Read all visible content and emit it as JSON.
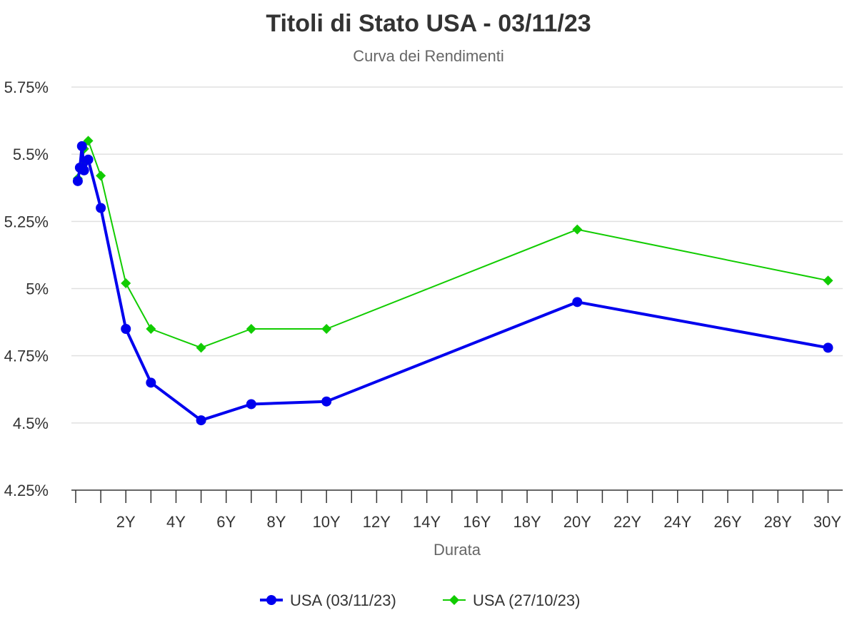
{
  "chart_data": {
    "type": "line",
    "title": "Titoli di Stato USA - 03/11/23",
    "subtitle": "Curva dei Rendimenti",
    "xlabel": "Durata",
    "ylabel": "",
    "xlim": [
      0,
      30.3
    ],
    "ylim": [
      4.25,
      5.75
    ],
    "y_ticks": [
      4.25,
      4.5,
      4.75,
      5,
      5.25,
      5.5,
      5.75
    ],
    "y_tick_labels": [
      "4.25%",
      "4.5%",
      "4.75%",
      "5%",
      "5.25%",
      "5.5%",
      "5.75%"
    ],
    "x_ticks": [
      2,
      4,
      6,
      8,
      10,
      12,
      14,
      16,
      18,
      20,
      22,
      24,
      26,
      28,
      30
    ],
    "x_tick_labels": [
      "2Y",
      "4Y",
      "6Y",
      "8Y",
      "10Y",
      "12Y",
      "14Y",
      "16Y",
      "18Y",
      "20Y",
      "22Y",
      "24Y",
      "26Y",
      "28Y",
      "30Y"
    ],
    "grid": "horizontal",
    "legend_position": "bottom-center",
    "series": [
      {
        "name": "USA (03/11/23)",
        "color": "#0000ee",
        "marker": "circle",
        "x": [
          0.083,
          0.167,
          0.25,
          0.333,
          0.5,
          1,
          2,
          3,
          5,
          7,
          10,
          20,
          30
        ],
        "y": [
          5.4,
          5.45,
          5.53,
          5.44,
          5.48,
          5.3,
          4.85,
          4.65,
          4.51,
          4.57,
          4.58,
          4.95,
          4.78
        ]
      },
      {
        "name": "USA (27/10/23)",
        "color": "#11cc00",
        "marker": "diamond",
        "x": [
          0.083,
          0.167,
          0.25,
          0.333,
          0.5,
          1,
          2,
          3,
          5,
          7,
          10,
          20,
          30
        ],
        "y": [
          5.41,
          5.45,
          5.46,
          5.52,
          5.55,
          5.42,
          5.02,
          4.85,
          4.78,
          4.85,
          4.85,
          5.22,
          5.03
        ]
      }
    ]
  }
}
